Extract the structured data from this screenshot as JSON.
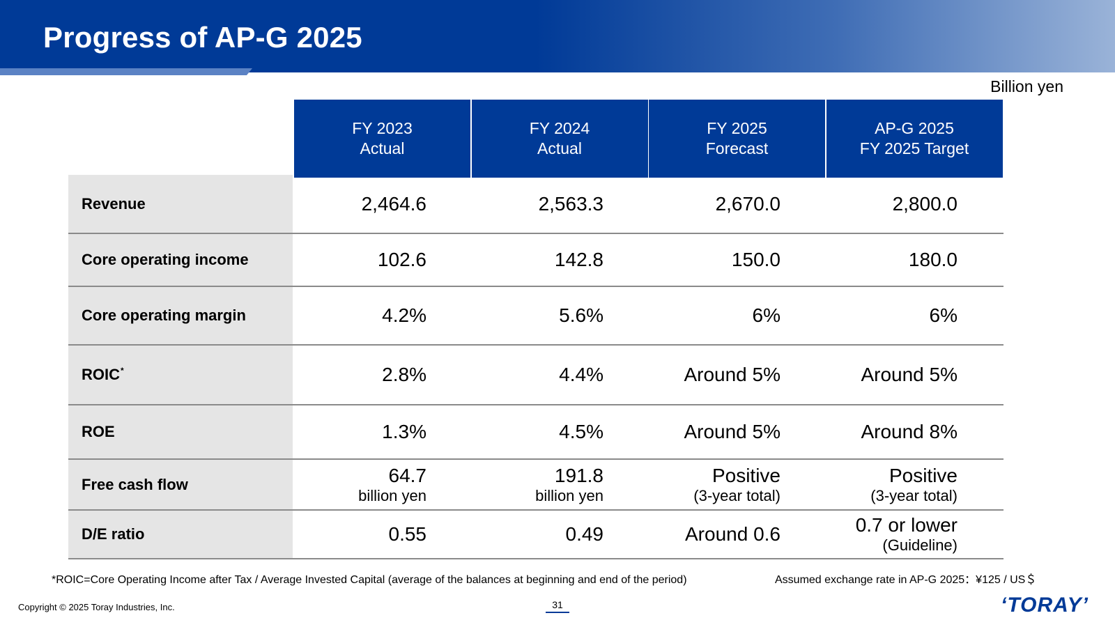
{
  "header": {
    "title": "Progress of AP-G 2025"
  },
  "unit_label": "Billion yen",
  "table": {
    "columns": [
      {
        "line1": "FY 2023",
        "line2": "Actual"
      },
      {
        "line1": "FY 2024",
        "line2": "Actual"
      },
      {
        "line1": "FY 2025",
        "line2": "Forecast"
      },
      {
        "line1": "AP-G 2025",
        "line2": "FY 2025 Target"
      }
    ],
    "rows": [
      {
        "label": "Revenue",
        "sup": "",
        "cells": [
          {
            "main": "2,464.6",
            "sub": ""
          },
          {
            "main": "2,563.3",
            "sub": ""
          },
          {
            "main": "2,670.0",
            "sub": ""
          },
          {
            "main": "2,800.0",
            "sub": ""
          }
        ]
      },
      {
        "label": "Core operating income",
        "sup": "",
        "cells": [
          {
            "main": "102.6",
            "sub": ""
          },
          {
            "main": "142.8",
            "sub": ""
          },
          {
            "main": "150.0",
            "sub": ""
          },
          {
            "main": "180.0",
            "sub": ""
          }
        ]
      },
      {
        "label": "Core operating margin",
        "sup": "",
        "cells": [
          {
            "main": "4.2%",
            "sub": ""
          },
          {
            "main": "5.6%",
            "sub": ""
          },
          {
            "main": "6%",
            "sub": ""
          },
          {
            "main": "6%",
            "sub": ""
          }
        ]
      },
      {
        "label": "ROIC",
        "sup": "*",
        "cells": [
          {
            "main": "2.8%",
            "sub": ""
          },
          {
            "main": "4.4%",
            "sub": ""
          },
          {
            "main": "Around 5%",
            "sub": ""
          },
          {
            "main": "Around 5%",
            "sub": ""
          }
        ]
      },
      {
        "label": "ROE",
        "sup": "",
        "cells": [
          {
            "main": "1.3%",
            "sub": ""
          },
          {
            "main": "4.5%",
            "sub": ""
          },
          {
            "main": "Around 5%",
            "sub": ""
          },
          {
            "main": "Around 8%",
            "sub": ""
          }
        ]
      },
      {
        "label": "Free cash flow",
        "sup": "",
        "cells": [
          {
            "main": "64.7",
            "sub": "billion yen"
          },
          {
            "main": "191.8",
            "sub": "billion yen"
          },
          {
            "main": "Positive",
            "sub": "(3-year total)"
          },
          {
            "main": "Positive",
            "sub": "(3-year total)"
          }
        ]
      },
      {
        "label": "D/E ratio",
        "sup": "",
        "cells": [
          {
            "main": "0.55",
            "sub": ""
          },
          {
            "main": "0.49",
            "sub": ""
          },
          {
            "main": "Around 0.6",
            "sub": ""
          },
          {
            "main": "0.7 or lower",
            "sub": "(Guideline)"
          }
        ]
      }
    ]
  },
  "footnote": "*ROIC=Core Operating Income after Tax / Average Invested Capital (average of the balances at beginning and end of the period)",
  "fx_note": "Assumed exchange rate in AP-G 2025：¥125 / US＄",
  "copyright": "Copyright © 2025 Toray Industries, Inc.",
  "page_number": "31",
  "logo_text": "TORAY",
  "colors": {
    "brand_blue": "#003a97",
    "label_bg": "#e5e5e5"
  }
}
